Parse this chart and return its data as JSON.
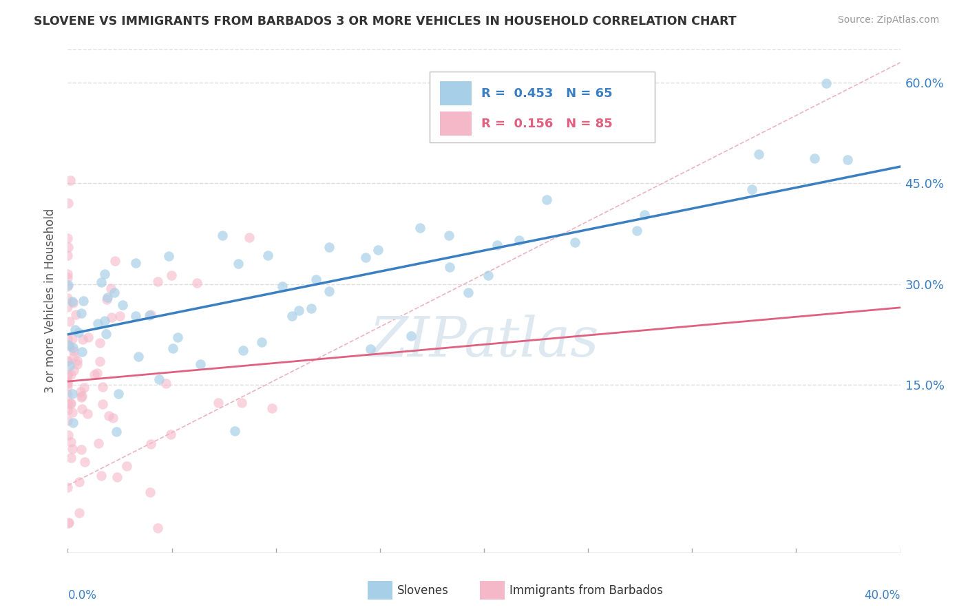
{
  "title": "SLOVENE VS IMMIGRANTS FROM BARBADOS 3 OR MORE VEHICLES IN HOUSEHOLD CORRELATION CHART",
  "source": "Source: ZipAtlas.com",
  "ylabel": "3 or more Vehicles in Household",
  "ylabel_ticks": [
    "15.0%",
    "30.0%",
    "45.0%",
    "60.0%"
  ],
  "ylabel_tick_vals": [
    0.15,
    0.3,
    0.45,
    0.6
  ],
  "xmin": 0.0,
  "xmax": 0.4,
  "ymin": -0.1,
  "ymax": 0.65,
  "legend1_r": "0.453",
  "legend1_n": "65",
  "legend2_r": "0.156",
  "legend2_n": "85",
  "color_blue": "#a8cfe8",
  "color_pink": "#f5b8c8",
  "color_blue_line": "#3a7fc1",
  "color_pink_line": "#e06080",
  "color_diag": "#e0a0a8",
  "watermark": "ZIPatlas",
  "watermark_color": "#dde8f0"
}
